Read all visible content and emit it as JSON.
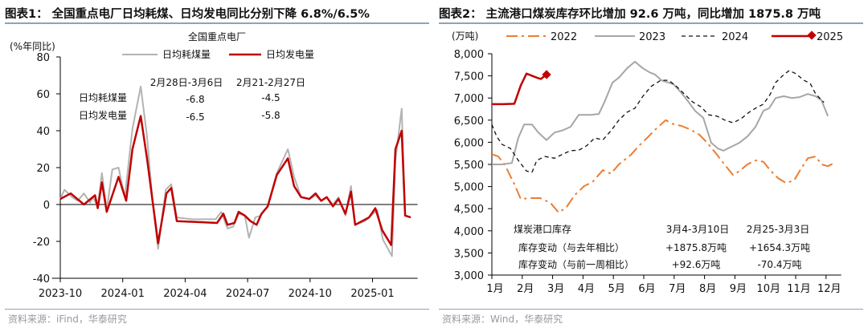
{
  "chart_data": [
    {
      "type": "line",
      "title": "图表1：  全国重点电厂日均耗煤、日均发电同比分别下降 6.8%/6.5%",
      "subtitle": "全国重点电厂",
      "ylabel": "(%年同比)",
      "ylim": [
        -40,
        80
      ],
      "yticks": [
        "80",
        "60",
        "40",
        "20",
        "0",
        "-20",
        "-40"
      ],
      "ytick_values": [
        80,
        60,
        40,
        20,
        0,
        -20,
        -40
      ],
      "xlim": [
        "2023-09-19",
        "2025-03-06"
      ],
      "xticks": [
        "2023-10",
        "2024-01",
        "2024-04",
        "2024-07",
        "2024-10",
        "2025-01"
      ],
      "legend_position": "top",
      "grid": false,
      "series": [
        {
          "name": "日均耗煤量",
          "color": "#b3b3b3",
          "points": [
            [
              "2023-10-01",
              3
            ],
            [
              "2023-10-07",
              8
            ],
            [
              "2023-10-18",
              4
            ],
            [
              "2023-10-26",
              2
            ],
            [
              "2023-11-05",
              6
            ],
            [
              "2023-11-14",
              1
            ],
            [
              "2023-11-18",
              4
            ],
            [
              "2023-11-25",
              -1
            ],
            [
              "2023-12-01",
              17
            ],
            [
              "2023-12-08",
              -3
            ],
            [
              "2023-12-16",
              19
            ],
            [
              "2023-12-25",
              20
            ],
            [
              "2024-01-04",
              4
            ],
            [
              "2024-01-15",
              41
            ],
            [
              "2024-01-27",
              64
            ],
            [
              "2024-02-06",
              37
            ],
            [
              "2024-02-14",
              2
            ],
            [
              "2024-02-22",
              -24
            ],
            [
              "2024-03-03",
              8
            ],
            [
              "2024-03-11",
              11
            ],
            [
              "2024-03-19",
              -7
            ],
            [
              "2024-04-10",
              -8
            ],
            [
              "2024-05-15",
              -8
            ],
            [
              "2024-05-23",
              -4
            ],
            [
              "2024-06-02",
              -13
            ],
            [
              "2024-06-10",
              -12
            ],
            [
              "2024-06-18",
              -5
            ],
            [
              "2024-06-27",
              -6
            ],
            [
              "2024-07-03",
              -18
            ],
            [
              "2024-07-12",
              -7
            ],
            [
              "2024-07-20",
              -6
            ],
            [
              "2024-07-30",
              -1
            ],
            [
              "2024-08-13",
              17
            ],
            [
              "2024-08-29",
              30
            ],
            [
              "2024-09-08",
              15
            ],
            [
              "2024-09-18",
              4
            ],
            [
              "2024-09-30",
              3
            ],
            [
              "2024-10-09",
              5
            ],
            [
              "2024-10-17",
              2
            ],
            [
              "2024-10-25",
              4
            ],
            [
              "2024-11-04",
              0
            ],
            [
              "2024-11-12",
              4
            ],
            [
              "2024-11-22",
              -6
            ],
            [
              "2024-11-30",
              10
            ],
            [
              "2024-12-06",
              -11
            ],
            [
              "2024-12-20",
              -9
            ],
            [
              "2025-01-08",
              -3
            ],
            [
              "2025-01-16",
              -19
            ],
            [
              "2025-01-29",
              -28
            ],
            [
              "2025-02-04",
              24
            ],
            [
              "2025-02-13",
              52
            ],
            [
              "2025-02-18",
              -6
            ],
            [
              "2025-02-26",
              -7
            ]
          ]
        },
        {
          "name": "日均发电量",
          "color": "#c00000",
          "points": [
            [
              "2023-10-01",
              3
            ],
            [
              "2023-10-16",
              6
            ],
            [
              "2023-11-05",
              0
            ],
            [
              "2023-11-21",
              5
            ],
            [
              "2023-11-25",
              -2
            ],
            [
              "2023-12-01",
              12
            ],
            [
              "2023-12-08",
              -4
            ],
            [
              "2023-12-25",
              15
            ],
            [
              "2024-01-06",
              2
            ],
            [
              "2024-01-15",
              30
            ],
            [
              "2024-01-27",
              48
            ],
            [
              "2024-02-06",
              25
            ],
            [
              "2024-02-22",
              -21
            ],
            [
              "2024-03-04",
              6
            ],
            [
              "2024-03-11",
              9
            ],
            [
              "2024-03-19",
              -9
            ],
            [
              "2024-05-17",
              -10
            ],
            [
              "2024-05-26",
              -5
            ],
            [
              "2024-06-02",
              -11
            ],
            [
              "2024-06-12",
              -10
            ],
            [
              "2024-06-18",
              -4
            ],
            [
              "2024-06-27",
              -6
            ],
            [
              "2024-07-05",
              -9
            ],
            [
              "2024-07-14",
              -11
            ],
            [
              "2024-07-21",
              -5
            ],
            [
              "2024-07-30",
              -1
            ],
            [
              "2024-08-13",
              16
            ],
            [
              "2024-08-29",
              25
            ],
            [
              "2024-09-08",
              10
            ],
            [
              "2024-09-18",
              4
            ],
            [
              "2024-09-30",
              3
            ],
            [
              "2024-10-09",
              6
            ],
            [
              "2024-10-17",
              2
            ],
            [
              "2024-10-25",
              4
            ],
            [
              "2024-11-04",
              -1
            ],
            [
              "2024-11-12",
              3
            ],
            [
              "2024-11-22",
              -5
            ],
            [
              "2024-11-30",
              7
            ],
            [
              "2024-12-06",
              -11
            ],
            [
              "2024-12-26",
              -7
            ],
            [
              "2025-01-05",
              -2
            ],
            [
              "2025-01-15",
              -14
            ],
            [
              "2025-01-28",
              -22
            ],
            [
              "2025-02-04",
              30
            ],
            [
              "2025-02-13",
              40
            ],
            [
              "2025-02-18",
              -6
            ],
            [
              "2025-02-26",
              -7
            ]
          ]
        }
      ],
      "annotation_table": {
        "headers": [
          "2月28日-3月6日",
          "2月21-2月27日"
        ],
        "rows": [
          {
            "label": "日均耗煤量",
            "values": [
              "-6.8",
              "-4.5"
            ]
          },
          {
            "label": "日均发电量",
            "values": [
              "-6.5",
              "-5.8"
            ]
          }
        ]
      },
      "source": "资料来源：iFind，华泰研究"
    },
    {
      "type": "line",
      "title": "图表2：  主流港口煤炭库存环比增加 92.6 万吨，同比增加 1875.8 万吨",
      "ylabel": "(万吨)",
      "ylim": [
        3000,
        8000
      ],
      "yticks": [
        "8,000",
        "7,500",
        "7,000",
        "6,500",
        "6,000",
        "5,500",
        "5,000",
        "4,500",
        "4,000",
        "3,500",
        "3,000"
      ],
      "ytick_values": [
        8000,
        7500,
        7000,
        6500,
        6000,
        5500,
        5000,
        4500,
        4000,
        3500,
        3000
      ],
      "xlim": [
        1,
        12.5
      ],
      "xticks": [
        "1月",
        "2月",
        "3月",
        "4月",
        "5月",
        "6月",
        "7月",
        "8月",
        "9月",
        "10月",
        "11月",
        "12月"
      ],
      "legend_position": "top",
      "grid": false,
      "series": [
        {
          "name": "2022",
          "color": "#ed7d31",
          "style": "dashdot",
          "x": [
            1.0,
            1.21,
            1.42,
            1.74,
            1.95,
            2.27,
            2.59,
            2.93,
            3.2,
            3.46,
            3.73,
            4.04,
            4.31,
            4.65,
            4.92,
            5.18,
            5.58,
            5.84,
            6.11,
            6.37,
            6.72,
            6.98,
            7.24,
            7.56,
            7.83,
            8.09,
            8.41,
            8.62,
            8.94,
            9.15,
            9.41,
            9.68,
            9.94,
            10.16,
            10.42,
            10.68,
            10.95,
            11.13,
            11.4,
            11.66,
            11.85,
            12.06,
            12.27
          ],
          "values": [
            5730,
            5680,
            5500,
            5050,
            4720,
            4740,
            4740,
            4630,
            4410,
            4540,
            4810,
            5010,
            5100,
            5370,
            5290,
            5500,
            5720,
            5920,
            6100,
            6280,
            6500,
            6410,
            6370,
            6280,
            6170,
            5990,
            5720,
            5530,
            5260,
            5350,
            5500,
            5590,
            5560,
            5370,
            5190,
            5080,
            5140,
            5350,
            5640,
            5680,
            5500,
            5460,
            5530
          ]
        },
        {
          "name": "2023",
          "color": "#a6a6a6",
          "style": "solid",
          "x": [
            1.0,
            1.34,
            1.66,
            1.87,
            2.06,
            2.32,
            2.53,
            2.8,
            3.06,
            3.33,
            3.59,
            3.86,
            4.25,
            4.52,
            4.7,
            4.97,
            5.18,
            5.45,
            5.71,
            5.97,
            6.19,
            6.37,
            6.58,
            6.98,
            7.22,
            7.43,
            7.69,
            7.96,
            8.22,
            8.44,
            8.62,
            8.89,
            9.15,
            9.41,
            9.68,
            9.94,
            10.13,
            10.34,
            10.61,
            10.87,
            11.13,
            11.4,
            11.66,
            11.85,
            12.06
          ],
          "values": [
            5500,
            5500,
            5530,
            6100,
            6400,
            6400,
            6220,
            6050,
            6220,
            6270,
            6350,
            6620,
            6620,
            6640,
            6900,
            7350,
            7460,
            7670,
            7820,
            7670,
            7580,
            7530,
            7400,
            7310,
            7130,
            6950,
            6710,
            6550,
            5990,
            5860,
            5810,
            5900,
            5990,
            6130,
            6350,
            6710,
            6770,
            7000,
            7040,
            7000,
            7020,
            7090,
            7040,
            6950,
            6590
          ]
        },
        {
          "name": "2024",
          "color": "#111111",
          "style": "dashed",
          "x": [
            1.0,
            1.16,
            1.34,
            1.61,
            1.87,
            2.14,
            2.32,
            2.48,
            2.75,
            3.06,
            3.33,
            3.59,
            3.86,
            4.12,
            4.39,
            4.65,
            4.92,
            5.18,
            5.45,
            5.71,
            5.97,
            6.24,
            6.56,
            6.82,
            7.08,
            7.35,
            7.61,
            7.88,
            8.14,
            8.41,
            8.67,
            8.94,
            9.2,
            9.47,
            9.73,
            9.94,
            10.16,
            10.34,
            10.61,
            10.79,
            11.0,
            11.27,
            11.48,
            11.66,
            11.93
          ],
          "values": [
            6400,
            6130,
            5950,
            5860,
            5590,
            5350,
            5320,
            5590,
            5680,
            5640,
            5730,
            5810,
            5820,
            5920,
            6100,
            6050,
            6260,
            6500,
            6680,
            6770,
            7040,
            7260,
            7400,
            7400,
            7260,
            7080,
            6910,
            6800,
            6620,
            6590,
            6500,
            6440,
            6530,
            6680,
            6790,
            6860,
            7080,
            7350,
            7530,
            7620,
            7550,
            7400,
            7330,
            7090,
            6900
          ]
        },
        {
          "name": "2025",
          "color": "#c00000",
          "style": "solid-marker",
          "x": [
            1.0,
            1.34,
            1.74,
            1.95,
            2.14,
            2.48,
            2.61,
            2.8
          ],
          "values": [
            6860,
            6860,
            6870,
            7280,
            7550,
            7460,
            7430,
            7530
          ]
        }
      ],
      "annotation_table": {
        "corner": "煤炭港口库存",
        "headers": [
          "3月4-3月10日",
          "2月25-3月3日"
        ],
        "rows": [
          {
            "label": "库存变动（与去年相比）",
            "values": [
              "+1875.8万吨",
              "+1654.3万吨"
            ]
          },
          {
            "label": "库存变动（与前一周相比）",
            "values": [
              "+92.6万吨",
              "-70.4万吨"
            ]
          }
        ]
      },
      "source": "资料来源：Wind，华泰研究"
    }
  ]
}
